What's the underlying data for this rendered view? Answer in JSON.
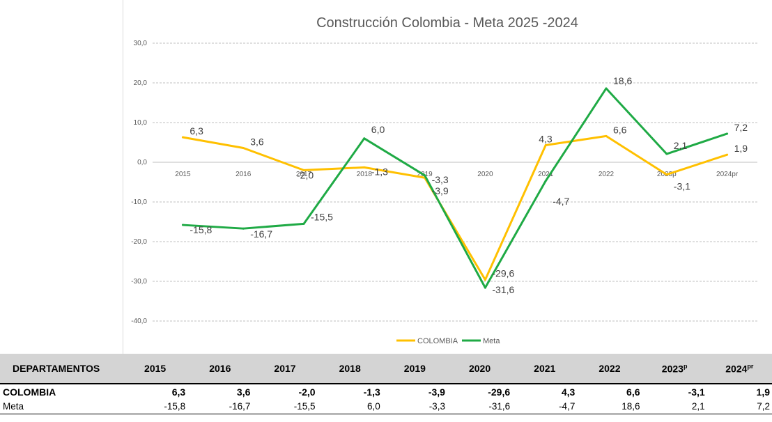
{
  "chart_data": {
    "type": "line",
    "title": "Construcción  Colombia - Meta 2025 -2024",
    "categories": [
      "2015",
      "2016",
      "2017",
      "2018",
      "2019",
      "2020",
      "2021",
      "2022",
      "2023p",
      "2024pr"
    ],
    "ylim": [
      -40,
      30
    ],
    "yticks": [
      "30,0",
      "20,0",
      "10,0",
      "0,0",
      "-10,0",
      "-20,0",
      "-30,0",
      "-40,0"
    ],
    "grid": true,
    "legend": "bottom",
    "series": [
      {
        "name": "COLOMBIA",
        "color": "#ffc000",
        "values": [
          6.3,
          3.6,
          -2.0,
          -1.3,
          -3.9,
          -29.6,
          4.3,
          6.6,
          -3.1,
          1.9
        ],
        "labels": [
          "6,3",
          "3,6",
          "-2,0",
          "-1,3",
          "-3,9",
          "-29,6",
          "4,3",
          "6,6",
          "-3,1",
          "1,9"
        ]
      },
      {
        "name": "Meta",
        "color": "#1faa45",
        "values": [
          -15.8,
          -16.7,
          -15.5,
          6.0,
          -3.3,
          -31.6,
          -4.7,
          18.6,
          2.1,
          7.2
        ],
        "labels": [
          "-15,8",
          "-16,7",
          "-15,5",
          "6,0",
          "-3,3",
          "-31,6",
          "-4,7",
          "18,6",
          "2,1",
          "7,2"
        ]
      }
    ]
  },
  "table": {
    "header_label": "DEPARTAMENTOS",
    "years": [
      {
        "main": "2015",
        "sup": ""
      },
      {
        "main": "2016",
        "sup": ""
      },
      {
        "main": "2017",
        "sup": ""
      },
      {
        "main": "2018",
        "sup": ""
      },
      {
        "main": "2019",
        "sup": ""
      },
      {
        "main": "2020",
        "sup": ""
      },
      {
        "main": "2021",
        "sup": ""
      },
      {
        "main": "2022",
        "sup": ""
      },
      {
        "main": "2023",
        "sup": "p"
      },
      {
        "main": "2024",
        "sup": "pr"
      }
    ],
    "rows": [
      {
        "label": "COLOMBIA",
        "values": [
          "6,3",
          "3,6",
          "-2,0",
          "-1,3",
          "-3,9",
          "-29,6",
          "4,3",
          "6,6",
          "-3,1",
          "1,9"
        ]
      },
      {
        "label": "Meta",
        "values": [
          "-15,8",
          "-16,7",
          "-15,5",
          "6,0",
          "-3,3",
          "-31,6",
          "-4,7",
          "18,6",
          "2,1",
          "7,2"
        ]
      }
    ]
  }
}
